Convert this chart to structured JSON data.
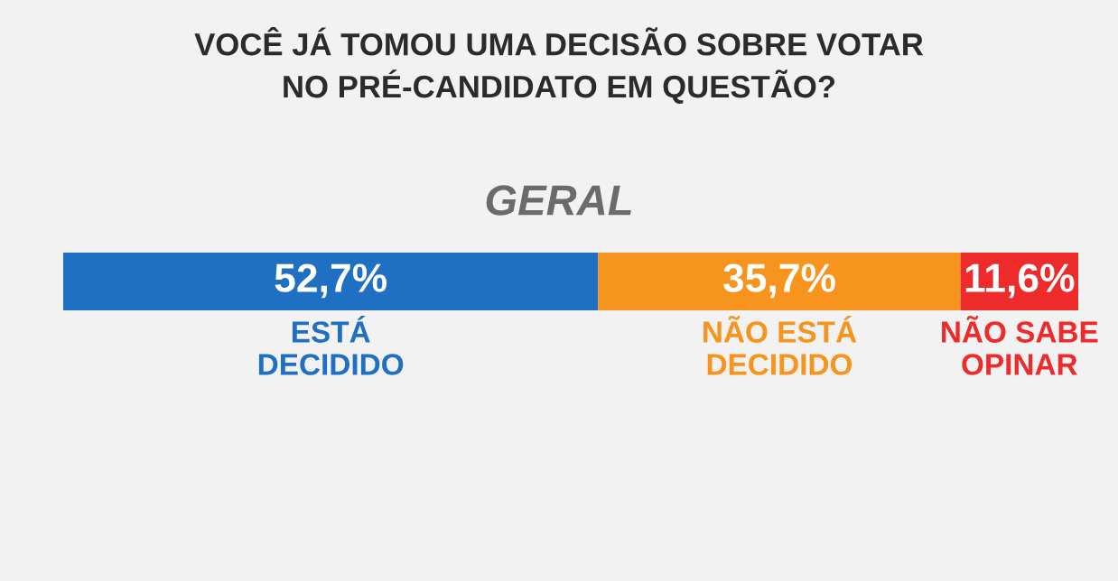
{
  "chart_data": {
    "type": "bar",
    "orientation": "horizontal",
    "stacked": true,
    "title": "VOCÊ JÁ TOMOU UMA DECISÃO SOBRE VOTAR\nNO PRÉ-CANDIDATO EM QUESTÃO?",
    "subtitle": "GERAL",
    "categories": [
      null
    ],
    "series": [
      {
        "name": "ESTÁ\nDECIDIDO",
        "color": "#1f6fc2",
        "values": [
          52.7
        ],
        "value_labels": [
          "52,7%"
        ]
      },
      {
        "name": "NÃO ESTÁ\nDECIDIDO",
        "color": "#f7941d",
        "values": [
          35.7
        ],
        "value_labels": [
          "35,7%"
        ]
      },
      {
        "name": "NÃO SABE\nOPINAR",
        "color": "#ee2b2b",
        "values": [
          11.6
        ],
        "value_labels": [
          "11,6%"
        ]
      }
    ],
    "legend": false
  }
}
